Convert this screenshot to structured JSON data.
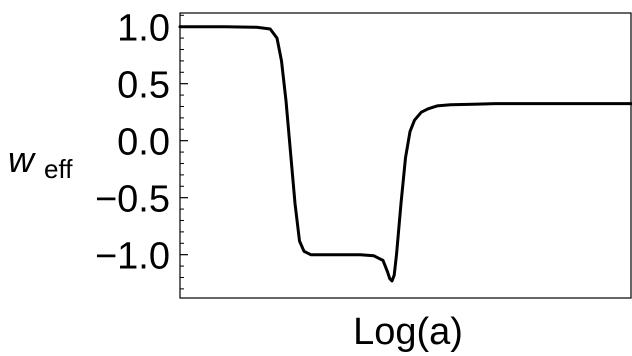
{
  "chart_data": {
    "type": "line",
    "title": "",
    "xlabel": "Log(a)",
    "ylabel": {
      "main": "w",
      "sub": "eff"
    },
    "x_ticks_shown": false,
    "grid": false,
    "legend": "none",
    "ylim": [
      -1.38,
      1.12
    ],
    "y_major_ticks": [
      1.0,
      0.5,
      0.0,
      -0.5,
      -1.0
    ],
    "y_tick_labels": [
      "1.0",
      "0.5",
      "0.0",
      "−0.5",
      "−1.0"
    ],
    "y_minor_step": 0.1,
    "colors": {
      "line": "#000000",
      "frame": "#000000"
    },
    "series": [
      {
        "x": [
          0.0,
          0.1,
          0.17,
          0.2,
          0.215,
          0.225,
          0.235,
          0.245,
          0.255,
          0.265,
          0.275,
          0.29,
          0.34,
          0.4,
          0.43,
          0.45,
          0.46,
          0.465,
          0.47,
          0.475,
          0.48,
          0.49,
          0.5,
          0.51,
          0.52,
          0.535,
          0.55,
          0.57,
          0.6,
          0.65,
          0.7,
          0.8,
          0.9,
          1.0
        ],
        "y": [
          1.0,
          1.0,
          0.995,
          0.98,
          0.9,
          0.7,
          0.35,
          -0.1,
          -0.55,
          -0.88,
          -0.97,
          -1.0,
          -1.0,
          -1.0,
          -1.01,
          -1.05,
          -1.15,
          -1.21,
          -1.23,
          -1.18,
          -1.0,
          -0.55,
          -0.15,
          0.08,
          0.18,
          0.25,
          0.28,
          0.305,
          0.315,
          0.32,
          0.325,
          0.325,
          0.325,
          0.325
        ]
      }
    ]
  }
}
